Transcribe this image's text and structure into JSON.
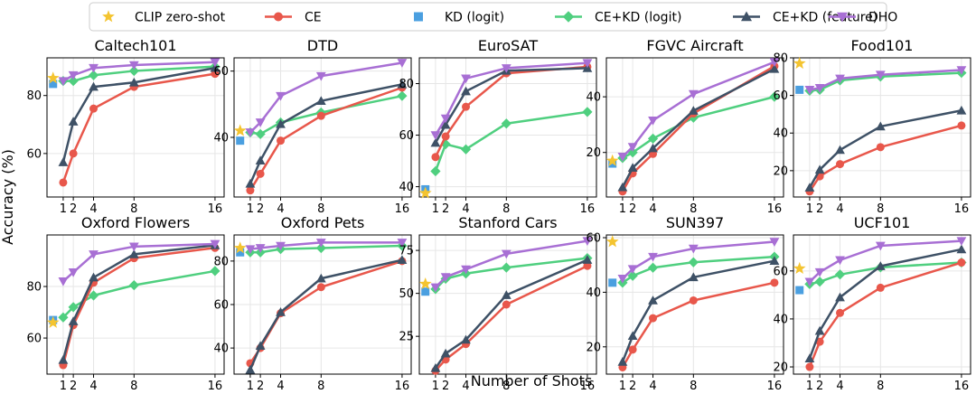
{
  "figure": {
    "ylabel": "Accuracy (%)",
    "xlabel": "Number of Shots"
  },
  "legend": [
    {
      "key": "clip",
      "label": "CLIP zero-shot",
      "color": "#f4c430",
      "marker": "star"
    },
    {
      "key": "ce",
      "label": "CE",
      "color": "#e8574b",
      "marker": "circle"
    },
    {
      "key": "kd_logit",
      "label": "KD (logit)",
      "color": "#4a9fe0",
      "marker": "square"
    },
    {
      "key": "cekd_logit",
      "label": "CE+KD (logit)",
      "color": "#4fcf7f",
      "marker": "diamond"
    },
    {
      "key": "cekd_feat",
      "label": "CE+KD (feature)",
      "color": "#3e5166",
      "marker": "triangle-up"
    },
    {
      "key": "dho",
      "label": "DHO",
      "color": "#a86fd4",
      "marker": "triangle-down"
    }
  ],
  "chart_data": [
    {
      "type": "line",
      "title": "Caltech101",
      "ylim": [
        45,
        93
      ],
      "yticks": [
        60,
        80
      ],
      "xticks": [
        1,
        2,
        4,
        8,
        16
      ],
      "clip_zero_shot": 86,
      "kd_logit_zero_shot": 84,
      "series": [
        {
          "name": "CE",
          "x": [
            1,
            2,
            4,
            8,
            16
          ],
          "values": [
            50,
            60,
            75.5,
            83,
            87.5
          ]
        },
        {
          "name": "CE+KD (logit)",
          "x": [
            1,
            2,
            4,
            8,
            16
          ],
          "values": [
            85,
            85,
            87,
            88.5,
            90
          ]
        },
        {
          "name": "CE+KD (feature)",
          "x": [
            1,
            2,
            4,
            8,
            16
          ],
          "values": [
            57,
            71,
            83,
            84.5,
            89.5
          ]
        },
        {
          "name": "DHO",
          "x": [
            1,
            2,
            4,
            8,
            16
          ],
          "values": [
            85,
            87,
            89.5,
            90.5,
            91.5
          ]
        }
      ]
    },
    {
      "type": "line",
      "title": "DTD",
      "ylim": [
        22,
        64
      ],
      "yticks": [
        40,
        60
      ],
      "xticks": [
        1,
        2,
        4,
        8,
        16
      ],
      "clip_zero_shot": 42,
      "kd_logit_zero_shot": 39,
      "series": [
        {
          "name": "CE",
          "x": [
            1,
            2,
            4,
            8,
            16
          ],
          "values": [
            24,
            29,
            39,
            46.5,
            55
          ]
        },
        {
          "name": "CE+KD (logit)",
          "x": [
            1,
            2,
            4,
            8,
            16
          ],
          "values": [
            41.5,
            41,
            44.5,
            47.5,
            52.5
          ]
        },
        {
          "name": "CE+KD (feature)",
          "x": [
            1,
            2,
            4,
            8,
            16
          ],
          "values": [
            26,
            33,
            44,
            51,
            56
          ]
        },
        {
          "name": "DHO",
          "x": [
            1,
            2,
            4,
            8,
            16
          ],
          "values": [
            41.5,
            44.5,
            52.5,
            58.5,
            62.5
          ]
        }
      ]
    },
    {
      "type": "line",
      "title": "EuroSAT",
      "ylim": [
        36,
        90
      ],
      "yticks": [
        40,
        60,
        80
      ],
      "xticks": [
        1,
        2,
        4,
        8,
        16
      ],
      "clip_zero_shot": 37.5,
      "kd_logit_zero_shot": 39,
      "series": [
        {
          "name": "CE",
          "x": [
            1,
            2,
            4,
            8,
            16
          ],
          "values": [
            51.5,
            59.5,
            71,
            84,
            86.5
          ]
        },
        {
          "name": "CE+KD (logit)",
          "x": [
            1,
            2,
            4,
            8,
            16
          ],
          "values": [
            46,
            56.5,
            54.5,
            64.5,
            69
          ]
        },
        {
          "name": "CE+KD (feature)",
          "x": [
            1,
            2,
            4,
            8,
            16
          ],
          "values": [
            57,
            64,
            77,
            85,
            86
          ]
        },
        {
          "name": "DHO",
          "x": [
            1,
            2,
            4,
            8,
            16
          ],
          "values": [
            60,
            66.5,
            82,
            86,
            88
          ]
        }
      ]
    },
    {
      "type": "line",
      "title": "FGVC Aircraft",
      "ylim": [
        4,
        54
      ],
      "yticks": [
        20,
        40
      ],
      "xticks": [
        1,
        2,
        4,
        8,
        16
      ],
      "clip_zero_shot": 17,
      "kd_logit_zero_shot": 16,
      "series": [
        {
          "name": "CE",
          "x": [
            1,
            2,
            4,
            8,
            16
          ],
          "values": [
            6,
            12.5,
            19.5,
            34,
            51
          ]
        },
        {
          "name": "CE+KD (logit)",
          "x": [
            1,
            2,
            4,
            8,
            16
          ],
          "values": [
            18,
            20,
            25,
            32.5,
            40
          ]
        },
        {
          "name": "CE+KD (feature)",
          "x": [
            1,
            2,
            4,
            8,
            16
          ],
          "values": [
            7.5,
            14.5,
            21.5,
            35,
            50
          ]
        },
        {
          "name": "DHO",
          "x": [
            1,
            2,
            4,
            8,
            16
          ],
          "values": [
            18.5,
            22,
            31.5,
            41,
            52.5
          ]
        }
      ]
    },
    {
      "type": "line",
      "title": "Food101",
      "ylim": [
        6,
        80
      ],
      "yticks": [
        20,
        40,
        60,
        80
      ],
      "xticks": [
        1,
        2,
        4,
        8,
        16
      ],
      "clip_zero_shot": 77,
      "kd_logit_zero_shot": 63,
      "series": [
        {
          "name": "CE",
          "x": [
            1,
            2,
            4,
            8,
            16
          ],
          "values": [
            9,
            17,
            23.5,
            32.5,
            44
          ]
        },
        {
          "name": "CE+KD (logit)",
          "x": [
            1,
            2,
            4,
            8,
            16
          ],
          "values": [
            62.5,
            63,
            68,
            70,
            72
          ]
        },
        {
          "name": "CE+KD (feature)",
          "x": [
            1,
            2,
            4,
            8,
            16
          ],
          "values": [
            11,
            20.5,
            31,
            43.5,
            52
          ]
        },
        {
          "name": "DHO",
          "x": [
            1,
            2,
            4,
            8,
            16
          ],
          "values": [
            63,
            64,
            69,
            71,
            73.5
          ]
        }
      ]
    },
    {
      "type": "line",
      "title": "Oxford Flowers",
      "ylim": [
        46,
        100
      ],
      "yticks": [
        60,
        80
      ],
      "xticks": [
        1,
        2,
        4,
        8,
        16
      ],
      "clip_zero_shot": 66,
      "kd_logit_zero_shot": 67,
      "series": [
        {
          "name": "CE",
          "x": [
            1,
            2,
            4,
            8,
            16
          ],
          "values": [
            49.5,
            65,
            81.5,
            91,
            95
          ]
        },
        {
          "name": "CE+KD (logit)",
          "x": [
            1,
            2,
            4,
            8,
            16
          ],
          "values": [
            68,
            72,
            76.5,
            80.5,
            86
          ]
        },
        {
          "name": "CE+KD (feature)",
          "x": [
            1,
            2,
            4,
            8,
            16
          ],
          "values": [
            51.5,
            66.5,
            83.5,
            92.5,
            96
          ]
        },
        {
          "name": "DHO",
          "x": [
            1,
            2,
            4,
            8,
            16
          ],
          "values": [
            82,
            85.5,
            92.5,
            95.5,
            96.5
          ]
        }
      ]
    },
    {
      "type": "line",
      "title": "Oxford Pets",
      "ylim": [
        28,
        92
      ],
      "yticks": [
        40,
        60,
        80
      ],
      "xticks": [
        1,
        2,
        4,
        8,
        16
      ],
      "clip_zero_shot": 86,
      "kd_logit_zero_shot": 84,
      "series": [
        {
          "name": "CE",
          "x": [
            1,
            2,
            4,
            8,
            16
          ],
          "values": [
            33,
            40,
            56,
            68,
            80
          ]
        },
        {
          "name": "CE+KD (logit)",
          "x": [
            1,
            2,
            4,
            8,
            16
          ],
          "values": [
            84,
            84,
            85.5,
            86,
            87
          ]
        },
        {
          "name": "CE+KD (feature)",
          "x": [
            1,
            2,
            4,
            8,
            16
          ],
          "values": [
            30,
            41,
            56.5,
            72,
            80.5
          ]
        },
        {
          "name": "DHO",
          "x": [
            1,
            2,
            4,
            8,
            16
          ],
          "values": [
            85.5,
            86,
            87,
            88.5,
            88.5
          ]
        }
      ]
    },
    {
      "type": "line",
      "title": "Stanford Cars",
      "ylim": [
        3,
        84
      ],
      "yticks": [
        25,
        50,
        75
      ],
      "xticks": [
        1,
        2,
        4,
        8,
        16
      ],
      "clip_zero_shot": 55.5,
      "kd_logit_zero_shot": 51,
      "series": [
        {
          "name": "CE",
          "x": [
            1,
            2,
            4,
            8,
            16
          ],
          "values": [
            5,
            11.5,
            20.5,
            43.5,
            66
          ]
        },
        {
          "name": "CE+KD (logit)",
          "x": [
            1,
            2,
            4,
            8,
            16
          ],
          "values": [
            52.5,
            58.5,
            61.5,
            65,
            70.5
          ]
        },
        {
          "name": "CE+KD (feature)",
          "x": [
            1,
            2,
            4,
            8,
            16
          ],
          "values": [
            6.5,
            15,
            23,
            49,
            69.5
          ]
        },
        {
          "name": "DHO",
          "x": [
            1,
            2,
            4,
            8,
            16
          ],
          "values": [
            53.5,
            59.5,
            64,
            73,
            80.5
          ]
        }
      ]
    },
    {
      "type": "line",
      "title": "SUN397",
      "ylim": [
        10,
        61
      ],
      "yticks": [
        20,
        40,
        60
      ],
      "xticks": [
        1,
        2,
        4,
        8,
        16
      ],
      "clip_zero_shot": 58.5,
      "kd_logit_zero_shot": 43.5,
      "series": [
        {
          "name": "CE",
          "x": [
            1,
            2,
            4,
            8,
            16
          ],
          "values": [
            12.5,
            19,
            30.5,
            37,
            43.5
          ]
        },
        {
          "name": "CE+KD (logit)",
          "x": [
            1,
            2,
            4,
            8,
            16
          ],
          "values": [
            43.5,
            46,
            49,
            51,
            53
          ]
        },
        {
          "name": "CE+KD (feature)",
          "x": [
            1,
            2,
            4,
            8,
            16
          ],
          "values": [
            14.5,
            24,
            37,
            45.5,
            51.5
          ]
        },
        {
          "name": "DHO",
          "x": [
            1,
            2,
            4,
            8,
            16
          ],
          "values": [
            45,
            48.5,
            53,
            56,
            58.5
          ]
        }
      ]
    },
    {
      "type": "line",
      "title": "UCF101",
      "ylim": [
        17,
        75
      ],
      "yticks": [
        20,
        40,
        60
      ],
      "xticks": [
        1,
        2,
        4,
        8,
        16
      ],
      "clip_zero_shot": 61,
      "kd_logit_zero_shot": 52,
      "series": [
        {
          "name": "CE",
          "x": [
            1,
            2,
            4,
            8,
            16
          ],
          "values": [
            20,
            30.5,
            42.5,
            53,
            63.5
          ]
        },
        {
          "name": "CE+KD (logit)",
          "x": [
            1,
            2,
            4,
            8,
            16
          ],
          "values": [
            54.5,
            55.5,
            58.5,
            61.5,
            63.5
          ]
        },
        {
          "name": "CE+KD (feature)",
          "x": [
            1,
            2,
            4,
            8,
            16
          ],
          "values": [
            23.5,
            35,
            49,
            62,
            69
          ]
        },
        {
          "name": "DHO",
          "x": [
            1,
            2,
            4,
            8,
            16
          ],
          "values": [
            55.5,
            59.5,
            64.5,
            70.5,
            72.5
          ]
        }
      ]
    }
  ]
}
